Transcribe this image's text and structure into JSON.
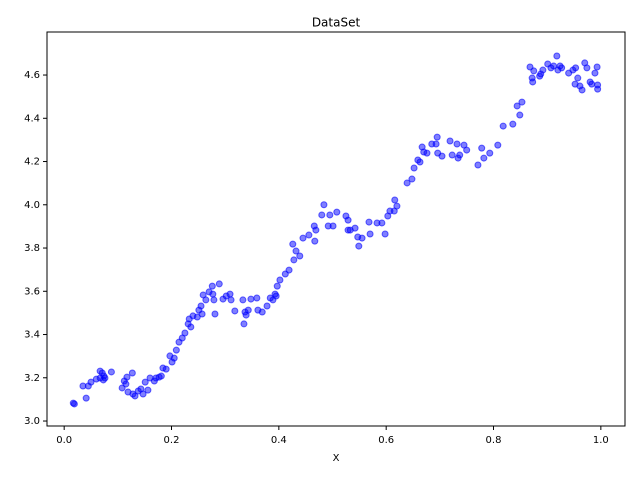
{
  "chart_data": {
    "type": "scatter",
    "title": "DataSet",
    "x_label": "X",
    "color": "#0000ff",
    "xlim": [
      -0.032,
      1.045
    ],
    "ylim": [
      2.977,
      4.799
    ],
    "xticks": [
      {
        "value": 0,
        "label": "0.0"
      },
      0.2,
      0.4,
      0.6,
      0.8,
      {
        "value": 1,
        "label": "1.0"
      }
    ],
    "yticks": [
      {
        "value": 3,
        "label": "3.0"
      },
      3.2,
      3.4,
      3.6,
      3.8,
      {
        "value": 4,
        "label": "4.0"
      },
      4.2,
      4.4,
      4.6
    ],
    "x": [
      0.017,
      0.019,
      0.035,
      0.041,
      0.045,
      0.05,
      0.06,
      0.067,
      0.067,
      0.071,
      0.074,
      0.073,
      0.076,
      0.088,
      0.108,
      0.112,
      0.115,
      0.117,
      0.119,
      0.127,
      0.128,
      0.132,
      0.138,
      0.143,
      0.147,
      0.151,
      0.156,
      0.16,
      0.168,
      0.171,
      0.177,
      0.181,
      0.184,
      0.19,
      0.197,
      0.201,
      0.205,
      0.209,
      0.214,
      0.22,
      0.225,
      0.231,
      0.233,
      0.236,
      0.24,
      0.248,
      0.251,
      0.255,
      0.257,
      0.259,
      0.264,
      0.27,
      0.276,
      0.277,
      0.279,
      0.281,
      0.289,
      0.296,
      0.302,
      0.309,
      0.311,
      0.318,
      0.333,
      0.335,
      0.337,
      0.339,
      0.343,
      0.348,
      0.359,
      0.361,
      0.369,
      0.378,
      0.384,
      0.389,
      0.393,
      0.395,
      0.397,
      0.402,
      0.412,
      0.419,
      0.426,
      0.428,
      0.432,
      0.439,
      0.445,
      0.456,
      0.466,
      0.469,
      0.467,
      0.48,
      0.484,
      0.492,
      0.495,
      0.501,
      0.508,
      0.525,
      0.529,
      0.529,
      0.533,
      0.542,
      0.547,
      0.549,
      0.555,
      0.568,
      0.57,
      0.583,
      0.592,
      0.598,
      0.603,
      0.607,
      0.615,
      0.616,
      0.62,
      0.639,
      0.648,
      0.652,
      0.659,
      0.663,
      0.667,
      0.67,
      0.676,
      0.685,
      0.693,
      0.695,
      0.696,
      0.704,
      0.719,
      0.723,
      0.732,
      0.734,
      0.737,
      0.745,
      0.75,
      0.771,
      0.778,
      0.782,
      0.793,
      0.808,
      0.818,
      0.836,
      0.844,
      0.849,
      0.853,
      0.868,
      0.872,
      0.873,
      0.875,
      0.886,
      0.888,
      0.892,
      0.901,
      0.907,
      0.912,
      0.918,
      0.92,
      0.924,
      0.927,
      0.94,
      0.948,
      0.953,
      0.952,
      0.957,
      0.961,
      0.965,
      0.97,
      0.974,
      0.98,
      0.983,
      0.989,
      0.993,
      0.994,
      0.994
    ],
    "y": [
      3.083,
      3.079,
      3.162,
      3.106,
      3.162,
      3.18,
      3.194,
      3.199,
      3.231,
      3.222,
      3.208,
      3.19,
      3.199,
      3.227,
      3.153,
      3.185,
      3.171,
      3.203,
      3.134,
      3.222,
      3.125,
      3.116,
      3.139,
      3.148,
      3.125,
      3.18,
      3.143,
      3.199,
      3.185,
      3.199,
      3.203,
      3.208,
      3.245,
      3.24,
      3.301,
      3.273,
      3.291,
      3.328,
      3.365,
      3.384,
      3.407,
      3.449,
      3.472,
      3.435,
      3.486,
      3.481,
      3.513,
      3.532,
      3.495,
      3.583,
      3.56,
      3.597,
      3.624,
      3.587,
      3.56,
      3.495,
      3.634,
      3.564,
      3.578,
      3.587,
      3.56,
      3.509,
      3.56,
      3.449,
      3.504,
      3.49,
      3.513,
      3.564,
      3.569,
      3.513,
      3.504,
      3.532,
      3.569,
      3.56,
      3.587,
      3.578,
      3.624,
      3.652,
      3.68,
      3.698,
      3.818,
      3.745,
      3.786,
      3.763,
      3.846,
      3.86,
      3.902,
      3.883,
      3.832,
      3.953,
      4.0,
      3.902,
      3.953,
      3.902,
      3.966,
      3.948,
      3.883,
      3.929,
      3.883,
      3.892,
      3.851,
      3.809,
      3.846,
      3.92,
      3.865,
      3.916,
      3.916,
      3.865,
      3.948,
      3.971,
      3.971,
      4.022,
      3.994,
      4.101,
      4.119,
      4.17,
      4.207,
      4.198,
      4.267,
      4.244,
      4.239,
      4.281,
      4.281,
      4.313,
      4.239,
      4.225,
      4.295,
      4.23,
      4.281,
      4.216,
      4.23,
      4.276,
      4.253,
      4.184,
      4.262,
      4.216,
      4.239,
      4.276,
      4.364,
      4.373,
      4.457,
      4.415,
      4.475,
      4.637,
      4.586,
      4.568,
      4.619,
      4.595,
      4.605,
      4.623,
      4.651,
      4.633,
      4.642,
      4.688,
      4.623,
      4.642,
      4.633,
      4.609,
      4.623,
      4.633,
      4.558,
      4.586,
      4.549,
      4.531,
      4.656,
      4.633,
      4.568,
      4.558,
      4.609,
      4.637,
      4.554,
      4.535
    ]
  }
}
